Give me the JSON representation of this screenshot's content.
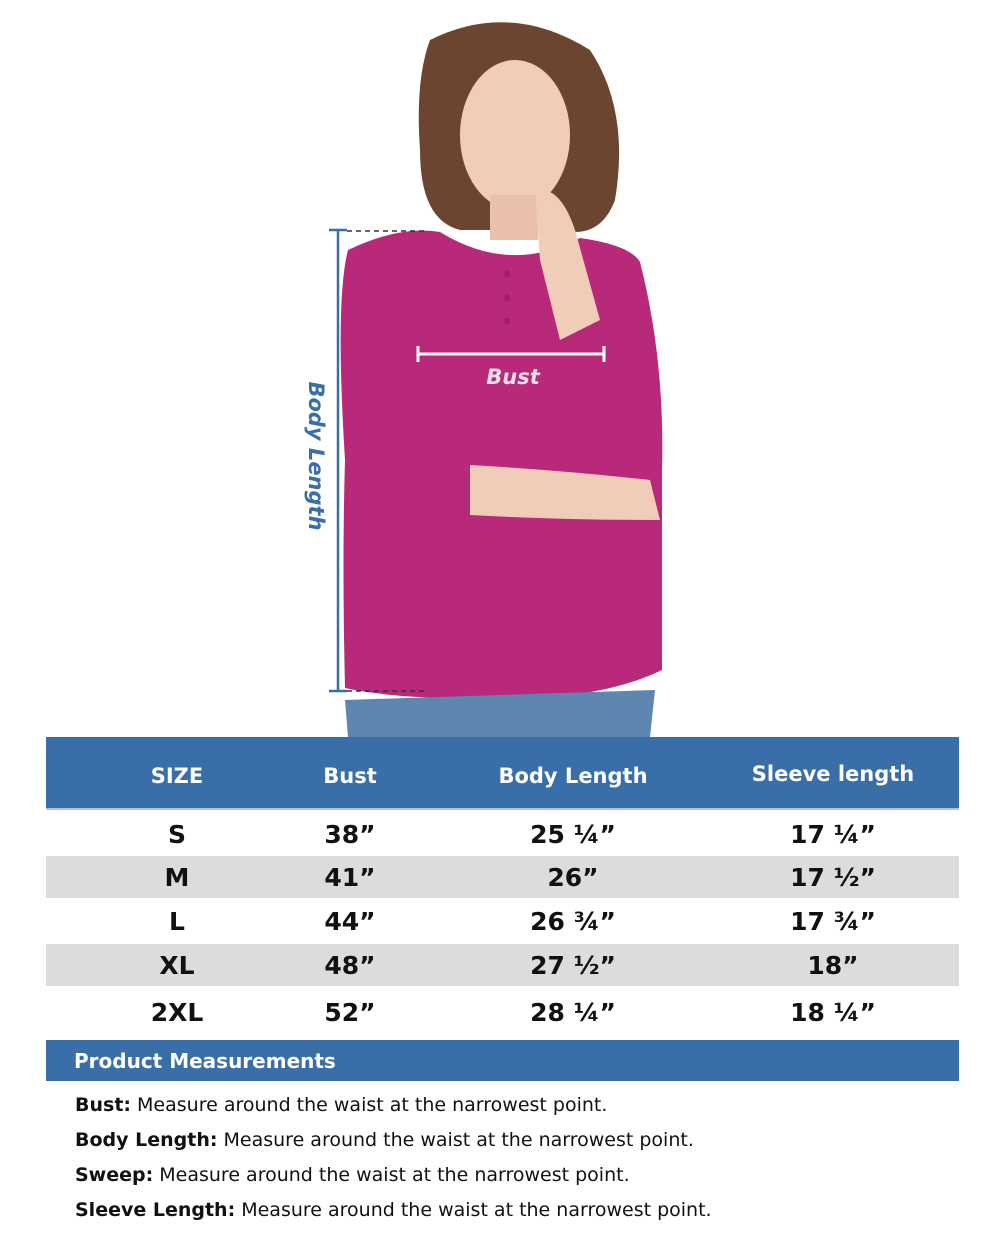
{
  "figure": {
    "body_length_label": "Body Length",
    "bust_label": "Bust",
    "colors": {
      "shirt": "#b8297a",
      "measure_line": "#3a6ea8",
      "jeans": "#5f86b0"
    }
  },
  "table": {
    "headers": [
      "SIZE",
      "Bust",
      "Body Length",
      "Sleeve length"
    ],
    "rows": [
      [
        "S",
        "38”",
        "25 ¼”",
        "17 ¼”"
      ],
      [
        "M",
        "41”",
        "26”",
        "17 ½”"
      ],
      [
        "L",
        "44”",
        "26 ¾”",
        "17 ¾”"
      ],
      [
        "XL",
        "48”",
        "27 ½”",
        "18”"
      ],
      [
        "2XL",
        "52”",
        "28 ¼”",
        "18 ¼”"
      ]
    ],
    "colors": {
      "header": "#3a6ea8",
      "stripe": "#dcdcdc"
    }
  },
  "measurements": {
    "title": "Product Measurements",
    "items": [
      {
        "term": "Bust:",
        "desc": " Measure around the waist at the narrowest point."
      },
      {
        "term": "Body Length:",
        "desc": " Measure around the waist at the narrowest point."
      },
      {
        "term": "Sweep:",
        "desc": " Measure around the waist at the narrowest point."
      },
      {
        "term": "Sleeve Length:",
        "desc": " Measure around the waist at the narrowest point."
      }
    ]
  }
}
